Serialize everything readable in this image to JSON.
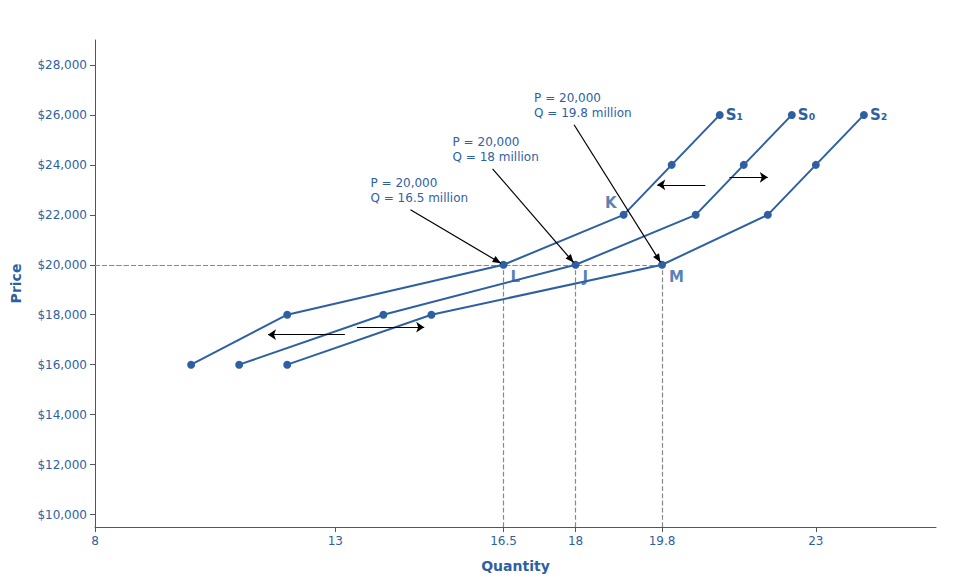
{
  "chart_data": {
    "type": "line",
    "xlabel": "Quantity",
    "ylabel": "Price",
    "color": "#2E5FA3",
    "marker": "circle",
    "grid": false,
    "xlim": [
      8,
      25.5
    ],
    "ylim": [
      9500,
      29000
    ],
    "xticks": [
      8,
      13,
      16.5,
      18,
      19.8,
      23
    ],
    "yticks": [
      {
        "value": 10000,
        "label": "$10,000"
      },
      {
        "value": 12000,
        "label": "$12,000"
      },
      {
        "value": 14000,
        "label": "$14,000"
      },
      {
        "value": 16000,
        "label": "$16,000"
      },
      {
        "value": 18000,
        "label": "$18,000"
      },
      {
        "value": 20000,
        "label": "$20,000"
      },
      {
        "value": 22000,
        "label": "$22,000"
      },
      {
        "value": 24000,
        "label": "$24,000"
      },
      {
        "value": 26000,
        "label": "$26,000"
      },
      {
        "value": 28000,
        "label": "$28,000"
      }
    ],
    "series": [
      {
        "name": "S₁",
        "x": [
          10.0,
          12.0,
          16.5,
          19.0,
          20.0,
          21.0
        ],
        "values": [
          16000,
          18000,
          20000,
          22000,
          24000,
          26000
        ]
      },
      {
        "name": "S₀",
        "x": [
          11.0,
          14.0,
          18.0,
          20.5,
          21.5,
          22.5
        ],
        "values": [
          16000,
          18000,
          20000,
          22000,
          24000,
          26000
        ]
      },
      {
        "name": "S₂",
        "x": [
          12.0,
          15.0,
          19.8,
          22.0,
          23.0,
          24.0
        ],
        "values": [
          16000,
          18000,
          20000,
          22000,
          24000,
          26000
        ]
      }
    ],
    "point_labels": [
      {
        "text": "L",
        "x": 16.5,
        "y": 20000
      },
      {
        "text": "J",
        "x": 18.0,
        "y": 20000
      },
      {
        "text": "K",
        "x": 19.0,
        "y": 22000
      },
      {
        "text": "M",
        "x": 19.8,
        "y": 20000
      }
    ],
    "callouts": [
      {
        "text": "P = 20,000\nQ = 19.8 million",
        "x": 19.8,
        "y": 20000
      },
      {
        "text": "P = 20,000\nQ = 18 million",
        "x": 18.0,
        "y": 20000
      },
      {
        "text": "P = 20,000\nQ = 16.5 million",
        "x": 16.5,
        "y": 20000
      }
    ],
    "shift_arrows": [
      {
        "from": [
          13.2,
          17200
        ],
        "to": [
          11.6,
          17200
        ]
      },
      {
        "from": [
          13.45,
          17500
        ],
        "to": [
          14.85,
          17500
        ]
      },
      {
        "from": [
          20.7,
          23200
        ],
        "to": [
          19.7,
          23200
        ]
      },
      {
        "from": [
          21.2,
          23500
        ],
        "to": [
          22.0,
          23500
        ]
      }
    ]
  }
}
